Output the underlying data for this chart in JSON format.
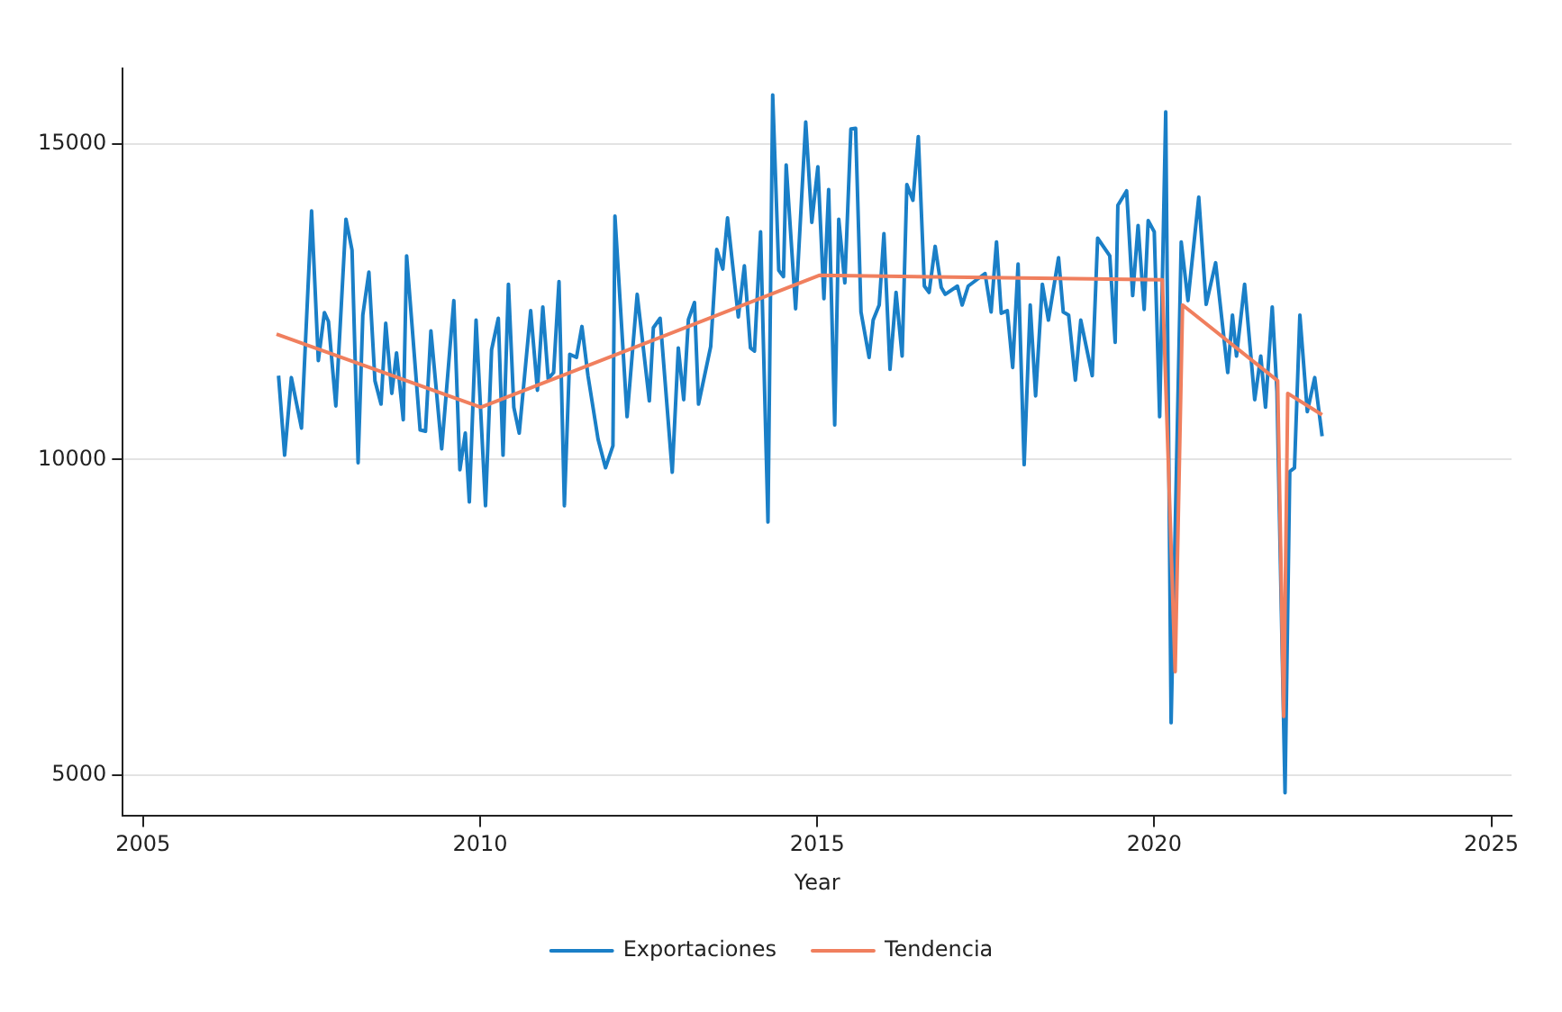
{
  "chart_data": {
    "type": "line",
    "xlabel": "Year",
    "xlim": [
      2004.7,
      2025.3
    ],
    "xticks": [
      2005,
      2010,
      2015,
      2020,
      2025
    ],
    "ylim": [
      4350,
      16200
    ],
    "yticks": [
      5000,
      10000,
      15000
    ],
    "grid": "y",
    "legend": "bottom",
    "marker": "none",
    "line_style": "solid",
    "series": [
      {
        "name": "Exportaciones",
        "color": "#1a7fc7",
        "x": [
          2007.01,
          2007.1,
          2007.2,
          2007.35,
          2007.5,
          2007.6,
          2007.69,
          2007.75,
          2007.86,
          2008.01,
          2008.1,
          2008.19,
          2008.26,
          2008.35,
          2008.44,
          2008.53,
          2008.6,
          2008.69,
          2008.76,
          2008.86,
          2008.91,
          2009.11,
          2009.19,
          2009.27,
          2009.43,
          2009.61,
          2009.7,
          2009.78,
          2009.84,
          2009.94,
          2010.08,
          2010.17,
          2010.27,
          2010.34,
          2010.42,
          2010.5,
          2010.58,
          2010.75,
          2010.85,
          2010.93,
          2011.01,
          2011.09,
          2011.17,
          2011.25,
          2011.33,
          2011.43,
          2011.51,
          2011.6,
          2011.75,
          2011.86,
          2011.97,
          2012.0,
          2012.18,
          2012.33,
          2012.51,
          2012.57,
          2012.67,
          2012.85,
          2012.94,
          2013.02,
          2013.09,
          2013.18,
          2013.24,
          2013.42,
          2013.51,
          2013.6,
          2013.67,
          2013.83,
          2013.92,
          2014.01,
          2014.07,
          2014.16,
          2014.27,
          2014.34,
          2014.43,
          2014.5,
          2014.54,
          2014.68,
          2014.83,
          2014.92,
          2015.01,
          2015.1,
          2015.17,
          2015.26,
          2015.32,
          2015.41,
          2015.5,
          2015.57,
          2015.65,
          2015.77,
          2015.83,
          2015.92,
          2015.99,
          2016.08,
          2016.17,
          2016.26,
          2016.33,
          2016.42,
          2016.5,
          2016.59,
          2016.66,
          2016.75,
          2016.84,
          2016.9,
          2017.08,
          2017.15,
          2017.24,
          2017.49,
          2017.58,
          2017.66,
          2017.73,
          2017.82,
          2017.9,
          2017.98,
          2018.07,
          2018.16,
          2018.24,
          2018.34,
          2018.43,
          2018.58,
          2018.65,
          2018.73,
          2018.83,
          2018.91,
          2019.08,
          2019.16,
          2019.34,
          2019.42,
          2019.46,
          2019.59,
          2019.68,
          2019.76,
          2019.85,
          2019.91,
          2020.0,
          2020.08,
          2020.17,
          2020.25,
          2020.4,
          2020.5,
          2020.66,
          2020.77,
          2020.91,
          2021.09,
          2021.16,
          2021.22,
          2021.34,
          2021.49,
          2021.58,
          2021.65,
          2021.75,
          2021.82,
          2021.94,
          2022.01,
          2022.08,
          2022.16,
          2022.27,
          2022.38,
          2022.49
        ],
        "values": [
          11330,
          10070,
          11300,
          10500,
          13940,
          11570,
          12330,
          12190,
          10850,
          13810,
          13320,
          9950,
          12290,
          12970,
          11250,
          10880,
          12160,
          11050,
          11690,
          10630,
          13230,
          10470,
          10450,
          12040,
          10170,
          12520,
          9840,
          10420,
          9330,
          12210,
          9270,
          11740,
          12240,
          10070,
          12780,
          10830,
          10420,
          12360,
          11100,
          12420,
          11280,
          11380,
          12820,
          9270,
          11670,
          11620,
          12110,
          11330,
          10320,
          9870,
          10220,
          13860,
          10680,
          12620,
          10930,
          12090,
          12240,
          9800,
          11770,
          10950,
          12220,
          12490,
          10880,
          11790,
          13330,
          13020,
          13830,
          12260,
          13070,
          11770,
          11720,
          13610,
          9010,
          15780,
          13000,
          12900,
          14670,
          12390,
          15350,
          13760,
          14640,
          12550,
          14280,
          10550,
          13810,
          12800,
          15240,
          15250,
          12340,
          11620,
          12210,
          12450,
          13580,
          11430,
          12650,
          11640,
          14360,
          14110,
          15120,
          12750,
          12650,
          13380,
          12730,
          12620,
          12750,
          12450,
          12750,
          12950,
          12340,
          13450,
          12320,
          12360,
          11460,
          13100,
          9920,
          12450,
          11010,
          12780,
          12210,
          13200,
          12340,
          12290,
          11260,
          12210,
          11330,
          13510,
          13230,
          11860,
          14030,
          14260,
          12600,
          13710,
          12380,
          13790,
          13610,
          10680,
          15510,
          5830,
          13450,
          12520,
          14160,
          12460,
          13120,
          11380,
          12290,
          11640,
          12780,
          10950,
          11640,
          10830,
          12420,
          11080,
          4720,
          9810,
          9870,
          12290,
          10760,
          11300,
          10370
        ]
      },
      {
        "name": "Tendencia",
        "color": "#f07f5e",
        "x": [
          2006.98,
          2010.01,
          2015.03,
          2020.12,
          2020.31,
          2020.42,
          2021.83,
          2021.92,
          2021.98,
          2022.49
        ],
        "values": [
          11990,
          10830,
          12920,
          12850,
          6640,
          12450,
          11250,
          5930,
          11050,
          10710
        ]
      }
    ]
  }
}
